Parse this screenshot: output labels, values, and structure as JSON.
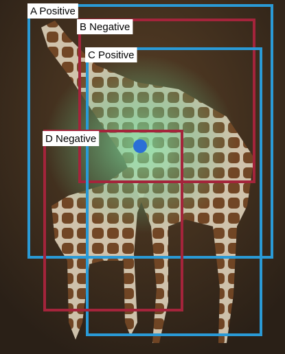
{
  "boxes": [
    {
      "label": "A Positive"
    },
    {
      "label": "B Negative"
    },
    {
      "label": "C Positive"
    },
    {
      "label": "D Negative"
    }
  ]
}
